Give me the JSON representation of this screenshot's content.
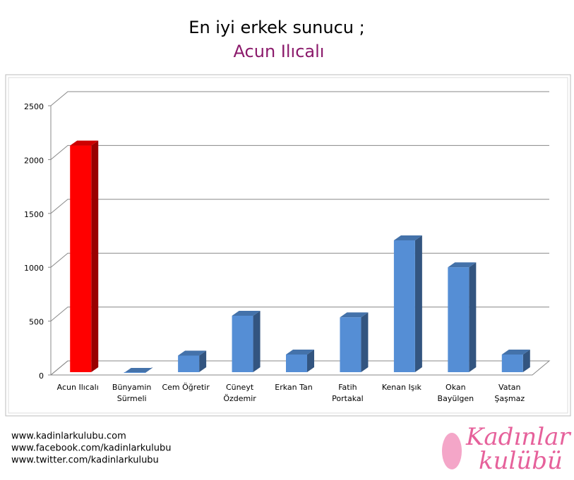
{
  "chart_data": {
    "type": "bar3d",
    "title": "En iyi erkek sunucu ;",
    "subtitle": "Acun Ilıcalı",
    "categories": [
      "Acun Ilıcalı",
      "Bünyamin\nSürmeli",
      "Cem Öğretir",
      "Cüneyt\nÖzdemir",
      "Erkan Tan",
      "Fatih\nPortakal",
      "Kenan Işık",
      "Okan\nBayülgen",
      "Vatan\nŞaşmaz"
    ],
    "values": [
      2130,
      20,
      180,
      550,
      190,
      535,
      1250,
      1000,
      190
    ],
    "colors": [
      "#ff0000",
      "#558ed5",
      "#558ed5",
      "#558ed5",
      "#558ed5",
      "#558ed5",
      "#558ed5",
      "#558ed5",
      "#558ed5"
    ],
    "ylim": [
      0,
      2500
    ],
    "yticks": [
      0,
      500,
      1000,
      1500,
      2000,
      2500
    ],
    "grid": true
  },
  "footer": {
    "links": [
      "www.kadinlarkulubu.com",
      "www.facebook.com/kadinlarkulubu",
      "www.twitter.com/kadinlarkulubu"
    ],
    "logo": [
      "Kadınlar",
      "kulübü"
    ]
  }
}
